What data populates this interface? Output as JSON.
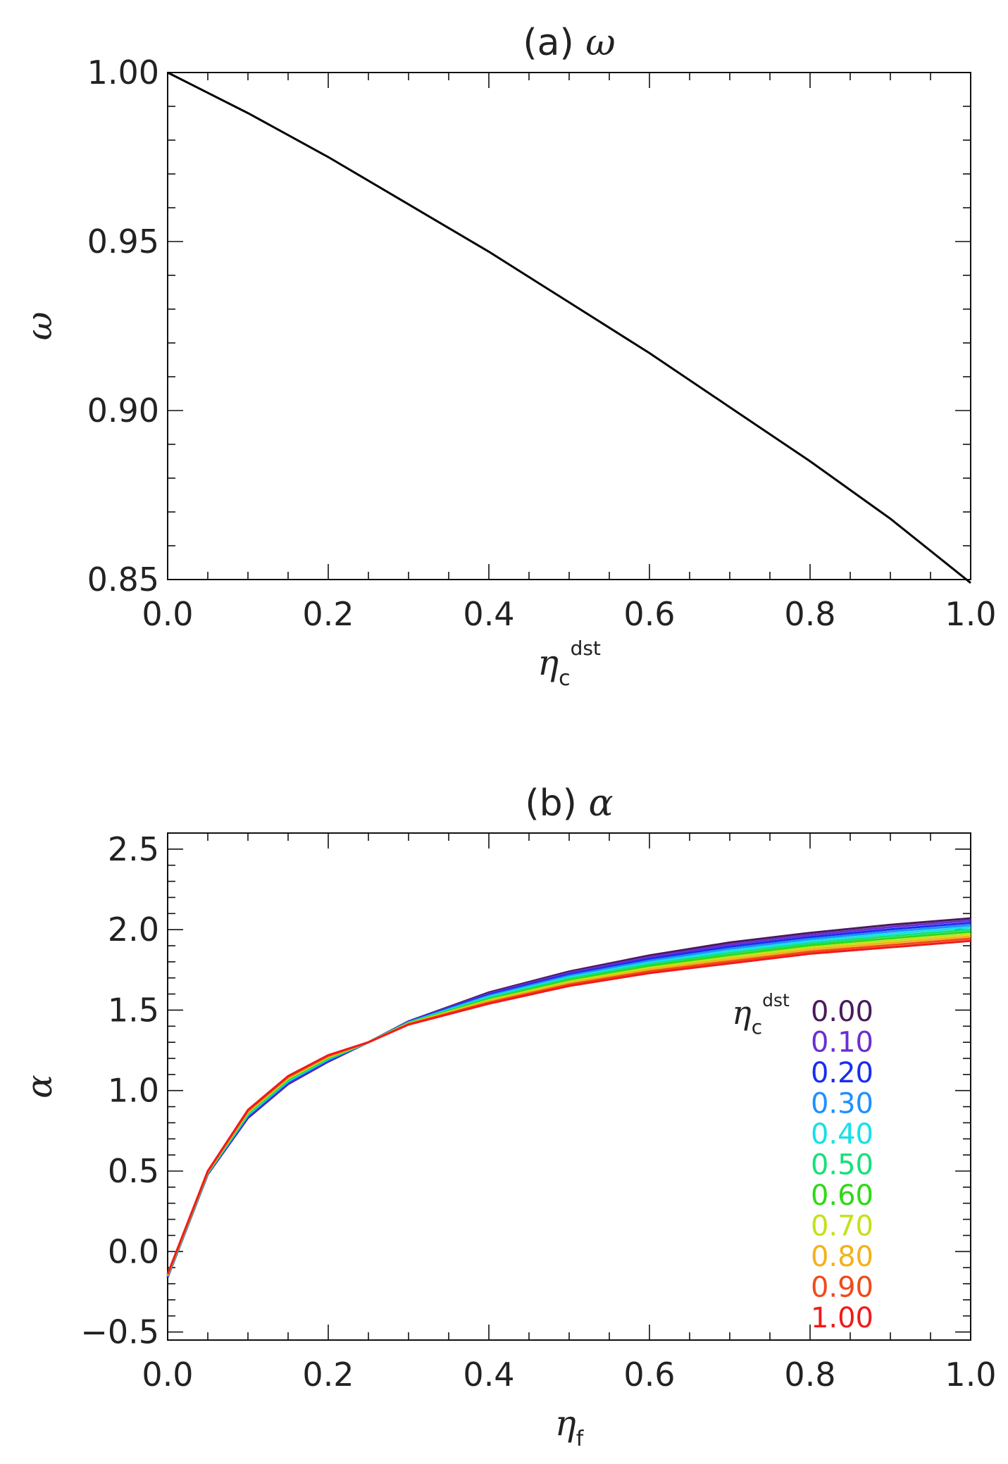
{
  "chart_data": [
    {
      "type": "line",
      "panel_label": "(a)",
      "title_symbol": "ω",
      "xlabel": {
        "symbol": "η",
        "sub": "c",
        "sup": "dst"
      },
      "ylabel": "ω",
      "xlim": [
        0.0,
        1.0
      ],
      "ylim": [
        0.85,
        1.0
      ],
      "xticks": [
        "0.0",
        "0.2",
        "0.4",
        "0.6",
        "0.8",
        "1.0"
      ],
      "yticks": [
        "0.85",
        "0.90",
        "0.95",
        "1.00"
      ],
      "grid": false,
      "series": [
        {
          "color": "#000000",
          "x": [
            0.0,
            0.1,
            0.2,
            0.3,
            0.4,
            0.5,
            0.6,
            0.7,
            0.8,
            0.9,
            1.0
          ],
          "y": [
            1.0,
            0.988,
            0.975,
            0.961,
            0.947,
            0.932,
            0.917,
            0.901,
            0.885,
            0.868,
            0.849
          ]
        }
      ]
    },
    {
      "type": "line",
      "panel_label": "(b)",
      "title_symbol": "α",
      "xlabel": {
        "symbol": "η",
        "sub": "f"
      },
      "ylabel": "α",
      "xlim": [
        0.0,
        1.0
      ],
      "ylim": [
        -0.55,
        2.6
      ],
      "xticks": [
        "0.0",
        "0.2",
        "0.4",
        "0.6",
        "0.8",
        "1.0"
      ],
      "yticks": [
        "-0.5",
        "0.0",
        "0.5",
        "1.0",
        "1.5",
        "2.0",
        "2.5"
      ],
      "grid": false,
      "x": [
        0.0,
        0.05,
        0.1,
        0.15,
        0.2,
        0.25,
        0.3,
        0.4,
        0.5,
        0.6,
        0.7,
        0.8,
        0.9,
        1.0
      ],
      "legend": {
        "placement": "bottom-right",
        "header": {
          "symbol": "η",
          "sub": "c",
          "sup": "dst"
        }
      },
      "series": [
        {
          "name": "0.00",
          "color": "#4b1a5c",
          "values": [
            -0.16,
            0.48,
            0.83,
            1.04,
            1.18,
            1.3,
            1.43,
            1.61,
            1.74,
            1.84,
            1.92,
            1.98,
            2.03,
            2.07
          ]
        },
        {
          "name": "0.10",
          "color": "#6a2fd0",
          "values": [
            -0.158,
            0.482,
            0.835,
            1.045,
            1.184,
            1.3,
            1.428,
            1.603,
            1.731,
            1.829,
            1.907,
            1.967,
            2.016,
            2.056
          ]
        },
        {
          "name": "0.20",
          "color": "#1a2cf2",
          "values": [
            -0.156,
            0.484,
            0.84,
            1.05,
            1.188,
            1.3,
            1.426,
            1.596,
            1.722,
            1.818,
            1.894,
            1.954,
            2.002,
            2.042
          ]
        },
        {
          "name": "0.30",
          "color": "#1e90ff",
          "values": [
            -0.154,
            0.486,
            0.845,
            1.055,
            1.192,
            1.3,
            1.424,
            1.589,
            1.713,
            1.807,
            1.881,
            1.941,
            1.988,
            2.028
          ]
        },
        {
          "name": "0.40",
          "color": "#16e0e8",
          "values": [
            -0.152,
            0.488,
            0.85,
            1.06,
            1.196,
            1.3,
            1.422,
            1.582,
            1.704,
            1.796,
            1.868,
            1.928,
            1.974,
            2.014
          ]
        },
        {
          "name": "0.50",
          "color": "#16e07a",
          "values": [
            -0.15,
            0.49,
            0.855,
            1.065,
            1.2,
            1.3,
            1.42,
            1.575,
            1.695,
            1.785,
            1.855,
            1.915,
            1.96,
            2.0
          ]
        },
        {
          "name": "0.60",
          "color": "#2ed915",
          "values": [
            -0.148,
            0.492,
            0.86,
            1.07,
            1.204,
            1.3,
            1.418,
            1.568,
            1.686,
            1.774,
            1.842,
            1.902,
            1.946,
            1.986
          ]
        },
        {
          "name": "0.70",
          "color": "#c6e01a",
          "values": [
            -0.146,
            0.494,
            0.865,
            1.075,
            1.208,
            1.3,
            1.416,
            1.561,
            1.677,
            1.763,
            1.829,
            1.889,
            1.932,
            1.972
          ]
        },
        {
          "name": "0.80",
          "color": "#f2b21a",
          "values": [
            -0.144,
            0.496,
            0.87,
            1.08,
            1.212,
            1.3,
            1.414,
            1.554,
            1.668,
            1.752,
            1.816,
            1.876,
            1.918,
            1.958
          ]
        },
        {
          "name": "0.90",
          "color": "#f04a1a",
          "values": [
            -0.142,
            0.498,
            0.875,
            1.085,
            1.216,
            1.3,
            1.412,
            1.547,
            1.659,
            1.741,
            1.803,
            1.863,
            1.904,
            1.944
          ]
        },
        {
          "name": "1.00",
          "color": "#f21a1a",
          "values": [
            -0.14,
            0.5,
            0.88,
            1.09,
            1.22,
            1.3,
            1.41,
            1.54,
            1.65,
            1.73,
            1.79,
            1.85,
            1.89,
            1.93
          ]
        }
      ]
    }
  ]
}
